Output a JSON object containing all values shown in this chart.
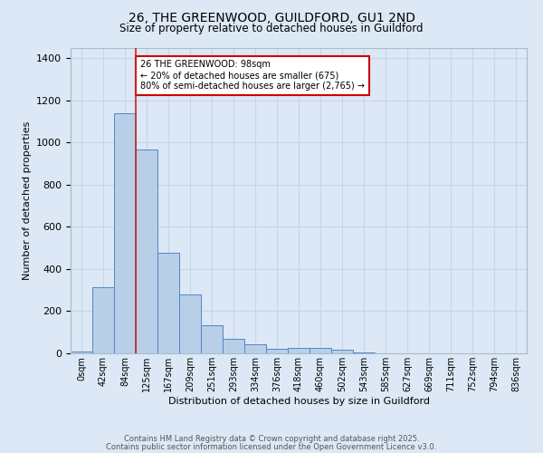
{
  "title": "26, THE GREENWOOD, GUILDFORD, GU1 2ND",
  "subtitle": "Size of property relative to detached houses in Guildford",
  "xlabel": "Distribution of detached houses by size in Guildford",
  "ylabel": "Number of detached properties",
  "bar_labels": [
    "0sqm",
    "42sqm",
    "84sqm",
    "125sqm",
    "167sqm",
    "209sqm",
    "251sqm",
    "293sqm",
    "334sqm",
    "376sqm",
    "418sqm",
    "460sqm",
    "502sqm",
    "543sqm",
    "585sqm",
    "627sqm",
    "669sqm",
    "711sqm",
    "752sqm",
    "794sqm",
    "836sqm"
  ],
  "bar_values": [
    10,
    315,
    1140,
    965,
    475,
    280,
    135,
    68,
    45,
    22,
    27,
    26,
    16,
    5,
    0,
    0,
    0,
    0,
    0,
    0,
    0
  ],
  "bar_color": "#b8cfe8",
  "bar_edge_color": "#5585c5",
  "grid_color": "#c8d4e8",
  "background_color": "#dce8f5",
  "vline_x": 2,
  "vline_color": "#cc2222",
  "annotation_text": "26 THE GREENWOOD: 98sqm\n← 20% of detached houses are smaller (675)\n80% of semi-detached houses are larger (2,765) →",
  "annotation_box_color": "white",
  "annotation_box_edge_color": "#cc0000",
  "ylim": [
    0,
    1450
  ],
  "footer1": "Contains HM Land Registry data © Crown copyright and database right 2025.",
  "footer2": "Contains public sector information licensed under the Open Government Licence v3.0."
}
